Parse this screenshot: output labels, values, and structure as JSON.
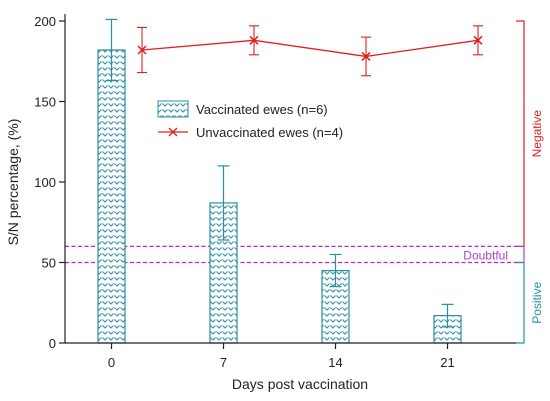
{
  "chart_data": {
    "type": "bar",
    "xlabel": "Days post vaccination",
    "ylabel": "S/N percentage, (%)",
    "categories": [
      "0",
      "7",
      "14",
      "21"
    ],
    "yticks": [
      "0",
      "50",
      "100",
      "150",
      "200"
    ],
    "ylim": [
      0,
      210
    ],
    "series": [
      {
        "name": "Vaccinated ewes (n=6)",
        "kind": "bar",
        "color": "#2a8fa0",
        "values": [
          182,
          87,
          45,
          17
        ],
        "error": [
          19,
          23,
          10,
          7
        ]
      },
      {
        "name": "Unvaccinated ewes (n=4)",
        "kind": "line",
        "color": "#e02020",
        "values": [
          182,
          188,
          178,
          188
        ],
        "error": [
          14,
          9,
          12,
          9
        ]
      }
    ],
    "thresholds": [
      60,
      50
    ],
    "threshold_color": "#c020e0",
    "legend_position": "center",
    "regions": [
      {
        "label": "Negative",
        "from": 60,
        "to": 200,
        "color": "#e02020"
      },
      {
        "label": "Doubtful",
        "from": 50,
        "to": 60,
        "color": "#b040d0"
      },
      {
        "label": "Positive",
        "from": 0,
        "to": 50,
        "color": "#2a8fa0"
      }
    ]
  }
}
